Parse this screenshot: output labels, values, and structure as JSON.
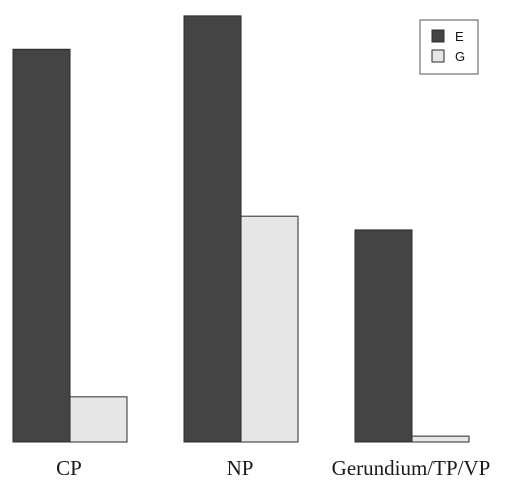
{
  "chart_data": {
    "type": "bar",
    "categories": [
      "CP",
      "NP",
      "Gerundium/TP/VP"
    ],
    "series": [
      {
        "name": "E",
        "values": [
          100,
          108.5,
          54
        ]
      },
      {
        "name": "G",
        "values": [
          11.5,
          57.5,
          1.5
        ]
      }
    ],
    "ylim": [
      0,
      110
    ],
    "grid": false,
    "legend_position": "top-right",
    "colors": {
      "E": "#444444",
      "G": "#e6e6e6",
      "stroke": "#2b2b2b"
    }
  }
}
